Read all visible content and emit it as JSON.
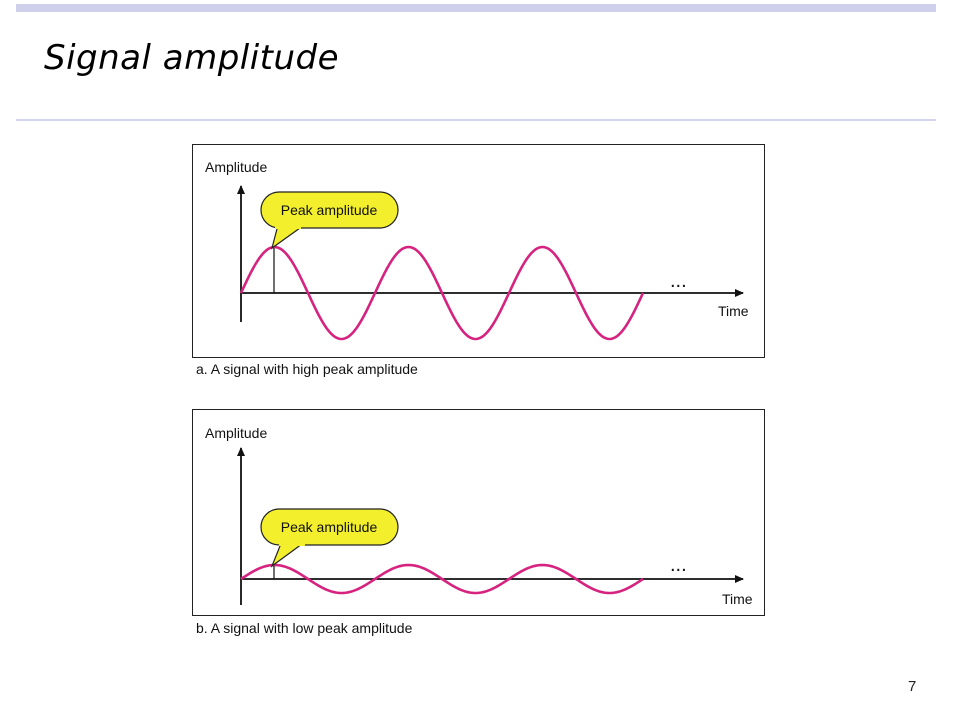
{
  "slide": {
    "title": "Signal amplitude",
    "page_number": "7"
  },
  "colors": {
    "wave": "#d6237f",
    "callout_fill": "#f3ef2c",
    "header_bar": "#cfd0ea"
  },
  "panels": [
    {
      "id": "a",
      "y_axis_label": "Amplitude",
      "x_axis_label": "Time",
      "callout": "Peak amplitude",
      "ellipsis": "...",
      "caption": "a. A signal with high peak amplitude",
      "peak_amplitude": "high",
      "cycles": 3
    },
    {
      "id": "b",
      "y_axis_label": "Amplitude",
      "x_axis_label": "Time",
      "callout": "Peak amplitude",
      "ellipsis": "...",
      "caption": "b. A signal with low peak amplitude",
      "peak_amplitude": "low",
      "cycles": 3
    }
  ]
}
